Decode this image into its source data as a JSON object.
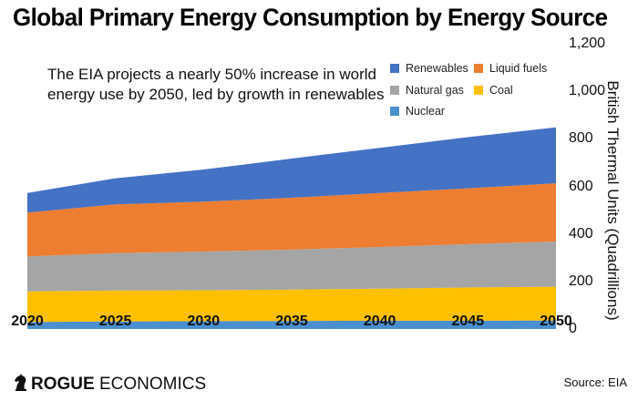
{
  "chart_data": {
    "type": "area",
    "stacked": true,
    "title": "Global Primary Energy Consumption by Energy Source",
    "annotation": "The EIA projects a nearly 50% increase in world energy use by 2050, led by growth in renewables",
    "x": [
      2020,
      2025,
      2030,
      2035,
      2040,
      2045,
      2050
    ],
    "ylabel": "British Thermal Units (Quadrillions)",
    "ylim": [
      0,
      1200
    ],
    "yticks": [
      "0",
      "200",
      "400",
      "600",
      "800",
      "1,000",
      "1,200"
    ],
    "yticks_values": [
      0,
      200,
      400,
      600,
      800,
      1000,
      1200
    ],
    "y_axis_side": "right",
    "legend_position": "top-right",
    "series": [
      {
        "name": "Nuclear",
        "color": "#4a8fd0",
        "values": [
          30,
          32,
          33,
          34,
          35,
          35,
          36
        ]
      },
      {
        "name": "Coal",
        "color": "#ffc000",
        "values": [
          128,
          130,
          130,
          132,
          135,
          140,
          142
        ]
      },
      {
        "name": "Natural gas",
        "color": "#a5a5a5",
        "values": [
          147,
          157,
          163,
          168,
          175,
          182,
          190
        ]
      },
      {
        "name": "Liquid fuels",
        "color": "#ed7d31",
        "values": [
          185,
          205,
          210,
          218,
          227,
          235,
          245
        ]
      },
      {
        "name": "Renewables",
        "color": "#4472c4",
        "values": [
          82,
          110,
          135,
          165,
          190,
          215,
          235
        ]
      }
    ],
    "legend_order": [
      "Renewables",
      "Liquid fuels",
      "Natural gas",
      "Coal",
      "Nuclear"
    ]
  },
  "footer": {
    "logo_bold": "ROGUE",
    "logo_light": "ECONOMICS",
    "logo_icon": "knight-chess-icon"
  },
  "source": "Source: EIA"
}
